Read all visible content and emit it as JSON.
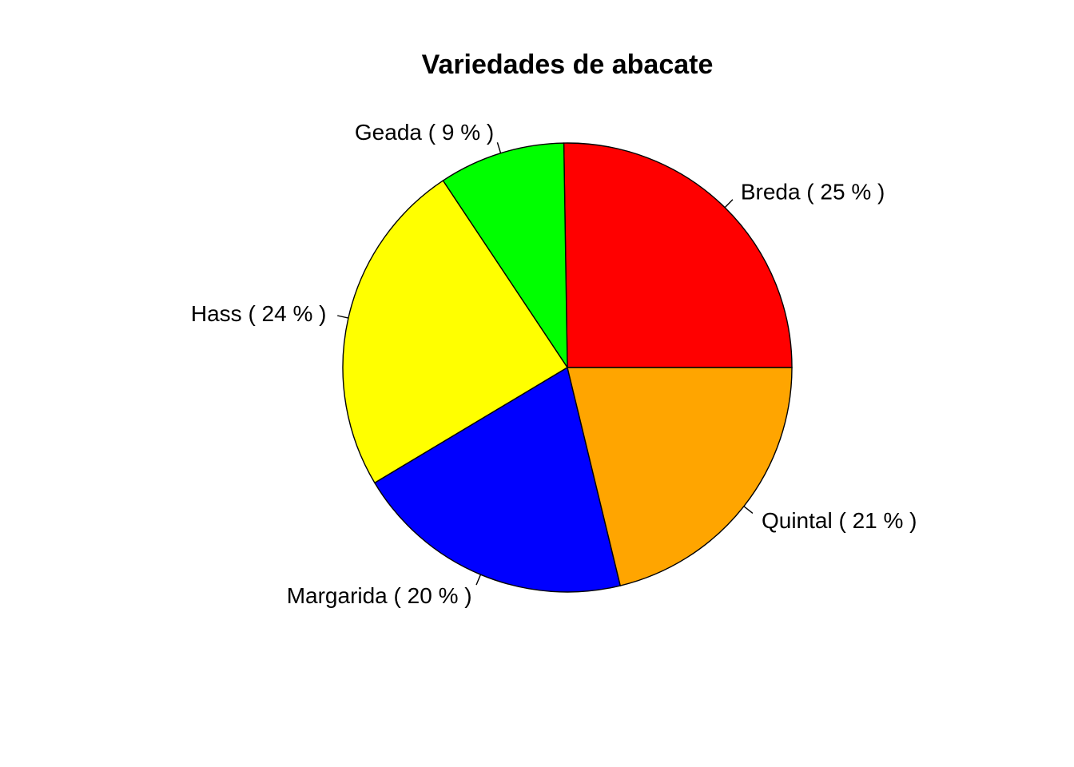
{
  "chart_data": {
    "type": "pie",
    "title": "Variedades de abacate",
    "start": "3 o'clock",
    "direction": "counterclockwise",
    "slices": [
      {
        "label": "Breda ( 25 % )",
        "value": 25,
        "color": "#ff0000"
      },
      {
        "label": "Geada ( 9 % )",
        "value": 9,
        "color": "#00ff00"
      },
      {
        "label": "Hass ( 24 % )",
        "value": 24,
        "color": "#ffff00"
      },
      {
        "label": "Margarida ( 20 % )",
        "value": 20,
        "color": "#0000ff"
      },
      {
        "label": "Quintal ( 21 % )",
        "value": 21,
        "color": "#ffa500"
      }
    ]
  }
}
